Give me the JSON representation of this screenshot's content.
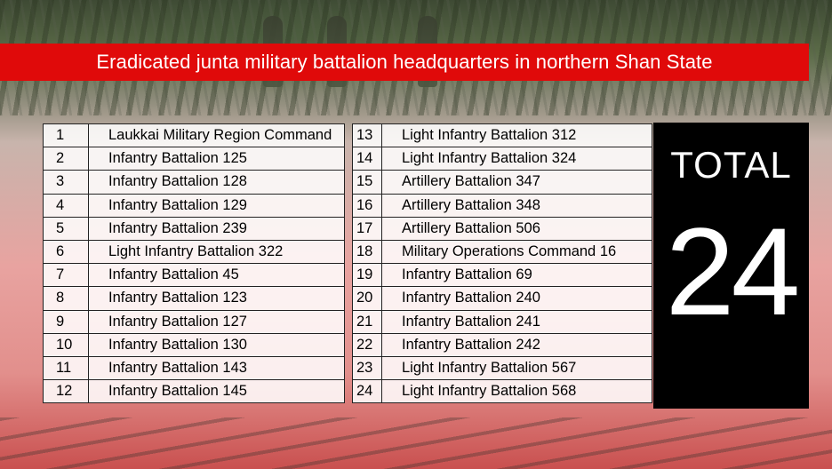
{
  "banner": {
    "title": "Eradicated junta military battalion headquarters in northern Shan State"
  },
  "table_left": [
    {
      "num": "1",
      "name": "Laukkai Military Region Command"
    },
    {
      "num": "2",
      "name": "Infantry Battalion 125"
    },
    {
      "num": "3",
      "name": "Infantry Battalion 128"
    },
    {
      "num": "4",
      "name": "Infantry Battalion 129"
    },
    {
      "num": "5",
      "name": "Infantry Battalion 239"
    },
    {
      "num": "6",
      "name": "Light Infantry Battalion 322"
    },
    {
      "num": "7",
      "name": "Infantry Battalion 45"
    },
    {
      "num": "8",
      "name": "Infantry Battalion 123"
    },
    {
      "num": "9",
      "name": "Infantry Battalion 127"
    },
    {
      "num": "10",
      "name": "Infantry Battalion 130"
    },
    {
      "num": "11",
      "name": "Infantry Battalion 143"
    },
    {
      "num": "12",
      "name": "Infantry Battalion 145"
    }
  ],
  "table_right": [
    {
      "num": "13",
      "name": "Light Infantry Battalion 312"
    },
    {
      "num": "14",
      "name": "Light Infantry Battalion 324"
    },
    {
      "num": "15",
      "name": "Artillery Battalion 347"
    },
    {
      "num": "16",
      "name": "Artillery Battalion 348"
    },
    {
      "num": "17",
      "name": "Artillery Battalion 506"
    },
    {
      "num": "18",
      "name": "Military Operations Command 16"
    },
    {
      "num": "19",
      "name": "Infantry Battalion 69"
    },
    {
      "num": "20",
      "name": "Infantry Battalion 240"
    },
    {
      "num": "21",
      "name": "Infantry Battalion 241"
    },
    {
      "num": "22",
      "name": "Infantry Battalion 242"
    },
    {
      "num": "23",
      "name": "Light Infantry Battalion 567"
    },
    {
      "num": "24",
      "name": "Light Infantry Battalion 568"
    }
  ],
  "total": {
    "label": "TOTAL",
    "value": "24"
  },
  "colors": {
    "banner": "#e00a0a",
    "total_box": "#000000",
    "table_bg": "#ffffff"
  }
}
